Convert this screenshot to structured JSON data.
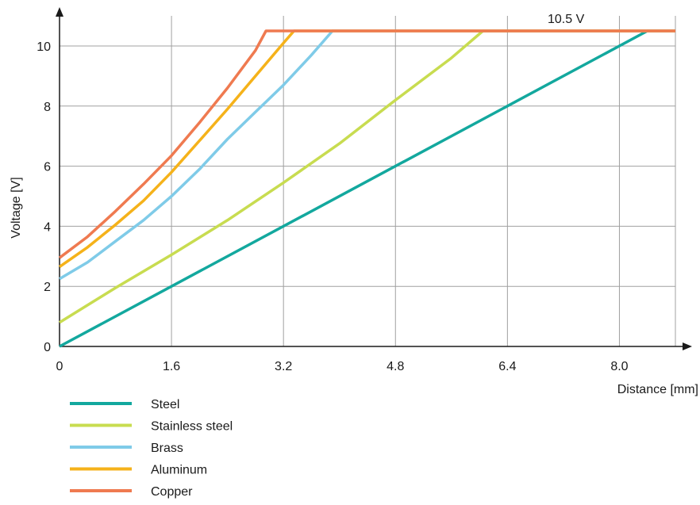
{
  "chart_data": {
    "type": "line",
    "xlabel": "Distance  [mm]",
    "ylabel": "Voltage  [V]",
    "xlim": [
      0,
      8.8
    ],
    "ylim": [
      0,
      10.5
    ],
    "x_ticks": [
      0,
      1.6,
      3.2,
      4.8,
      6.4,
      8.0
    ],
    "x_tick_labels": [
      "0",
      "1.6",
      "3.2",
      "4.8",
      "6.4",
      "8.0"
    ],
    "y_ticks": [
      0,
      2,
      4,
      6,
      8,
      10
    ],
    "y_tick_labels": [
      "0",
      "2",
      "4",
      "6",
      "8",
      "10"
    ],
    "grid": true,
    "legend_position": "bottom-left",
    "annotation": {
      "text": "10.5 V",
      "x": 7.2,
      "y": 10.5
    },
    "series": [
      {
        "name": "Steel",
        "color": "#13a89e",
        "points": [
          [
            0,
            0
          ],
          [
            8.4,
            10.5
          ],
          [
            8.8,
            10.5
          ]
        ]
      },
      {
        "name": "Stainless steel",
        "color": "#c8dc50",
        "points": [
          [
            0,
            0.8
          ],
          [
            0.8,
            1.95
          ],
          [
            1.6,
            3.05
          ],
          [
            2.4,
            4.2
          ],
          [
            3.2,
            5.45
          ],
          [
            4.0,
            6.75
          ],
          [
            4.8,
            8.2
          ],
          [
            5.6,
            9.6
          ],
          [
            6.05,
            10.5
          ],
          [
            8.8,
            10.5
          ]
        ]
      },
      {
        "name": "Brass",
        "color": "#7fcbe8",
        "points": [
          [
            0,
            2.25
          ],
          [
            0.4,
            2.8
          ],
          [
            0.8,
            3.5
          ],
          [
            1.2,
            4.2
          ],
          [
            1.6,
            5.0
          ],
          [
            2.0,
            5.9
          ],
          [
            2.4,
            6.9
          ],
          [
            2.8,
            7.8
          ],
          [
            3.2,
            8.7
          ],
          [
            3.6,
            9.7
          ],
          [
            3.9,
            10.5
          ],
          [
            8.8,
            10.5
          ]
        ]
      },
      {
        "name": "Aluminum",
        "color": "#f5b21a",
        "points": [
          [
            0,
            2.65
          ],
          [
            0.4,
            3.3
          ],
          [
            0.8,
            4.05
          ],
          [
            1.2,
            4.85
          ],
          [
            1.6,
            5.8
          ],
          [
            2.0,
            6.85
          ],
          [
            2.4,
            7.9
          ],
          [
            2.8,
            9.0
          ],
          [
            3.2,
            10.1
          ],
          [
            3.35,
            10.5
          ],
          [
            8.8,
            10.5
          ]
        ]
      },
      {
        "name": "Copper",
        "color": "#ef7a50",
        "points": [
          [
            0,
            2.95
          ],
          [
            0.4,
            3.65
          ],
          [
            0.8,
            4.5
          ],
          [
            1.2,
            5.4
          ],
          [
            1.6,
            6.35
          ],
          [
            2.0,
            7.45
          ],
          [
            2.4,
            8.6
          ],
          [
            2.8,
            9.85
          ],
          [
            2.95,
            10.5
          ],
          [
            8.8,
            10.5
          ]
        ]
      }
    ]
  }
}
